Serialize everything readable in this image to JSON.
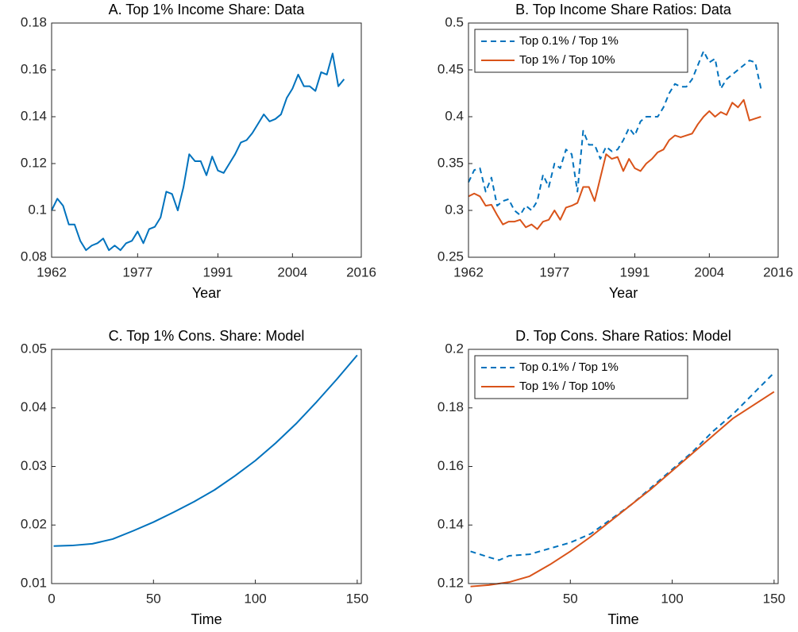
{
  "chart_data": [
    {
      "type": "line",
      "title": "A.  Top 1% Income Share: Data",
      "xlabel": "Year",
      "x": [
        1962,
        1963,
        1964,
        1965,
        1966,
        1967,
        1968,
        1969,
        1970,
        1971,
        1972,
        1973,
        1974,
        1975,
        1976,
        1977,
        1978,
        1979,
        1980,
        1981,
        1982,
        1983,
        1984,
        1985,
        1986,
        1987,
        1988,
        1989,
        1990,
        1991,
        1992,
        1993,
        1994,
        1995,
        1996,
        1997,
        1998,
        1999,
        2000,
        2001,
        2002,
        2003,
        2004,
        2005,
        2006,
        2007,
        2008,
        2009,
        2010,
        2011,
        2012,
        2013
      ],
      "values": [
        0.1,
        0.105,
        0.102,
        0.094,
        0.094,
        0.087,
        0.083,
        0.085,
        0.086,
        0.088,
        0.083,
        0.085,
        0.083,
        0.086,
        0.087,
        0.091,
        0.086,
        0.092,
        0.093,
        0.097,
        0.108,
        0.107,
        0.1,
        0.11,
        0.124,
        0.121,
        0.121,
        0.115,
        0.123,
        0.117,
        0.116,
        0.12,
        0.124,
        0.129,
        0.13,
        0.133,
        0.137,
        0.141,
        0.138,
        0.139,
        0.141,
        0.148,
        0.152,
        0.158,
        0.153,
        0.153,
        0.151,
        0.159,
        0.158,
        0.167,
        0.153,
        0.156
      ],
      "color": "#0072BD",
      "xlim": [
        1962,
        2016
      ],
      "xticks": [
        1962,
        1977,
        1991,
        2004,
        2016
      ],
      "ylim": [
        0.08,
        0.18
      ],
      "yticks": [
        0.08,
        0.1,
        0.12,
        0.14,
        0.16,
        0.18
      ]
    },
    {
      "type": "line",
      "title": "B.  Top Income Share Ratios: Data",
      "xlabel": "Year",
      "x": [
        1962,
        1963,
        1964,
        1965,
        1966,
        1967,
        1968,
        1969,
        1970,
        1971,
        1972,
        1973,
        1974,
        1975,
        1976,
        1977,
        1978,
        1979,
        1980,
        1981,
        1982,
        1983,
        1984,
        1985,
        1986,
        1987,
        1988,
        1989,
        1990,
        1991,
        1992,
        1993,
        1994,
        1995,
        1996,
        1997,
        1998,
        1999,
        2000,
        2001,
        2002,
        2003,
        2004,
        2005,
        2006,
        2007,
        2008,
        2009,
        2010,
        2011,
        2012,
        2013
      ],
      "series": [
        {
          "name": "Top 0.1% / Top 1%",
          "color": "#0072BD",
          "style": "dashed",
          "values": [
            0.33,
            0.343,
            0.345,
            0.32,
            0.335,
            0.305,
            0.31,
            0.312,
            0.3,
            0.295,
            0.305,
            0.3,
            0.31,
            0.338,
            0.325,
            0.35,
            0.345,
            0.365,
            0.36,
            0.32,
            0.385,
            0.37,
            0.37,
            0.355,
            0.368,
            0.363,
            0.365,
            0.375,
            0.388,
            0.38,
            0.395,
            0.4,
            0.4,
            0.4,
            0.41,
            0.425,
            0.435,
            0.432,
            0.432,
            0.44,
            0.455,
            0.47,
            0.458,
            0.462,
            0.43,
            0.44,
            0.445,
            0.45,
            0.455,
            0.46,
            0.458,
            0.43
          ]
        },
        {
          "name": "Top 1% / Top 10%",
          "color": "#D95319",
          "style": "solid",
          "values": [
            0.315,
            0.318,
            0.315,
            0.305,
            0.306,
            0.295,
            0.285,
            0.288,
            0.288,
            0.29,
            0.282,
            0.285,
            0.28,
            0.288,
            0.29,
            0.3,
            0.29,
            0.303,
            0.305,
            0.308,
            0.325,
            0.325,
            0.31,
            0.335,
            0.36,
            0.355,
            0.357,
            0.342,
            0.355,
            0.345,
            0.342,
            0.35,
            0.355,
            0.362,
            0.365,
            0.375,
            0.38,
            0.378,
            0.38,
            0.382,
            0.392,
            0.4,
            0.406,
            0.4,
            0.405,
            0.402,
            0.415,
            0.41,
            0.418,
            0.396,
            0.398,
            0.4
          ]
        }
      ],
      "legend": "upper left",
      "xlim": [
        1962,
        2016
      ],
      "xticks": [
        1962,
        1977,
        1991,
        2004,
        2016
      ],
      "ylim": [
        0.25,
        0.5
      ],
      "yticks": [
        0.25,
        0.3,
        0.35,
        0.4,
        0.45,
        0.5
      ]
    },
    {
      "type": "line",
      "title": "C.  Top 1% Cons. Share: Model",
      "xlabel": "Time",
      "x": [
        1,
        10,
        20,
        30,
        40,
        50,
        60,
        70,
        80,
        90,
        100,
        110,
        120,
        130,
        140,
        150
      ],
      "values": [
        0.0164,
        0.0165,
        0.0168,
        0.0176,
        0.019,
        0.0205,
        0.0222,
        0.024,
        0.026,
        0.0284,
        0.031,
        0.034,
        0.0373,
        0.041,
        0.0449,
        0.049
      ],
      "color": "#0072BD",
      "xlim": [
        0,
        152
      ],
      "xticks": [
        0,
        50,
        100,
        150
      ],
      "ylim": [
        0.01,
        0.05
      ],
      "yticks": [
        0.01,
        0.02,
        0.03,
        0.04,
        0.05
      ]
    },
    {
      "type": "line",
      "title": "D.  Top Cons. Share Ratios: Model",
      "xlabel": "Time",
      "x": [
        1,
        10,
        15,
        20,
        30,
        40,
        50,
        60,
        70,
        80,
        90,
        100,
        110,
        120,
        130,
        140,
        150
      ],
      "series": [
        {
          "name": "Top 0.1% / Top 1%",
          "color": "#0072BD",
          "style": "dashed",
          "values": [
            0.131,
            0.129,
            0.128,
            0.1295,
            0.13,
            0.132,
            0.134,
            0.137,
            0.142,
            0.147,
            0.153,
            0.159,
            0.165,
            0.172,
            0.178,
            0.185,
            0.192
          ]
        },
        {
          "name": "Top 1% / Top 10%",
          "color": "#D95319",
          "style": "solid",
          "values": [
            0.119,
            0.1195,
            0.12,
            0.1205,
            0.1225,
            0.1265,
            0.131,
            0.136,
            0.1415,
            0.147,
            0.1525,
            0.1585,
            0.1645,
            0.1705,
            0.1765,
            0.181,
            0.1855
          ]
        }
      ],
      "legend": "upper left",
      "xlim": [
        0,
        152
      ],
      "xticks": [
        0,
        50,
        100,
        150
      ],
      "ylim": [
        0.12,
        0.2
      ],
      "yticks": [
        0.12,
        0.14,
        0.16,
        0.18,
        0.2
      ]
    }
  ]
}
